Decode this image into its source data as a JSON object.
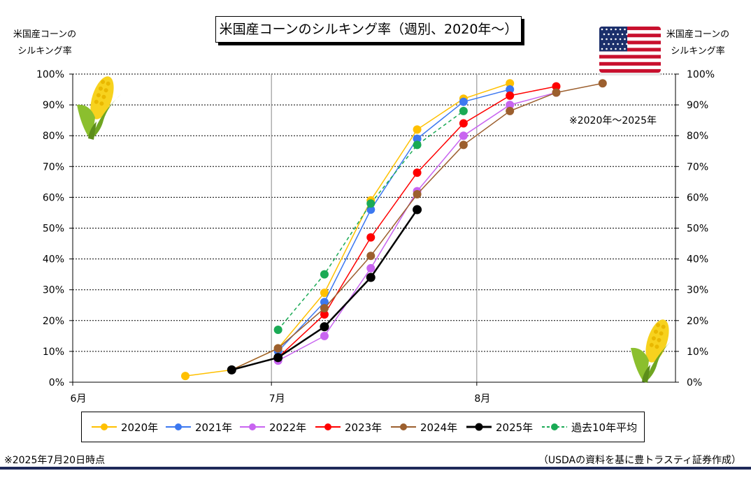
{
  "title": "米国産コーンのシルキング率（週別、2020年～）",
  "left_axis_title": [
    "米国産コーンの",
    "シルキング率"
  ],
  "right_axis_title": [
    "米国産コーンの",
    "シルキング率"
  ],
  "note_range": "※2020年～2025年",
  "footer_left": "※2025年7月20日時点",
  "footer_right": "（USDAの資料を基に豊トラスティ証券作成）",
  "colors": {
    "accent_bar": "#1f2a5a"
  },
  "icons": [
    "corn-icon",
    "us-flag-icon"
  ],
  "chart_data": {
    "type": "line",
    "title": "米国産コーンのシルキング率（週別、2020年～）",
    "x_unit": "days from Jun 1",
    "x_ticks": [
      {
        "label": "6月",
        "x": 0
      },
      {
        "label": "7月",
        "x": 30
      },
      {
        "label": "8月",
        "x": 61
      }
    ],
    "xlim": [
      0,
      91
    ],
    "ylim": [
      0,
      100
    ],
    "y_ticks": [
      0,
      10,
      20,
      30,
      40,
      50,
      60,
      70,
      80,
      90,
      100
    ],
    "y_tick_suffix": "%",
    "grid": true,
    "legend": "bottom",
    "series": [
      {
        "name": "2020年",
        "color": "#FFC000",
        "dashed": false,
        "width": 1.5,
        "points": [
          [
            17,
            2
          ],
          [
            24,
            4
          ],
          [
            31,
            11
          ],
          [
            38,
            29
          ],
          [
            45,
            59
          ],
          [
            52,
            82
          ],
          [
            59,
            92
          ],
          [
            66,
            97
          ]
        ]
      },
      {
        "name": "2021年",
        "color": "#3C78F0",
        "dashed": false,
        "width": 1.5,
        "points": [
          [
            31,
            10
          ],
          [
            38,
            26
          ],
          [
            45,
            56
          ],
          [
            52,
            79
          ],
          [
            59,
            91
          ],
          [
            66,
            95
          ]
        ]
      },
      {
        "name": "2022年",
        "color": "#C864F0",
        "dashed": false,
        "width": 1.5,
        "points": [
          [
            31,
            7
          ],
          [
            38,
            15
          ],
          [
            45,
            37
          ],
          [
            52,
            62
          ],
          [
            59,
            80
          ],
          [
            66,
            90
          ],
          [
            73,
            94
          ]
        ]
      },
      {
        "name": "2023年",
        "color": "#FF0000",
        "dashed": false,
        "width": 1.5,
        "points": [
          [
            31,
            8
          ],
          [
            38,
            22
          ],
          [
            45,
            47
          ],
          [
            52,
            68
          ],
          [
            59,
            84
          ],
          [
            66,
            93
          ],
          [
            73,
            96
          ]
        ]
      },
      {
        "name": "2024年",
        "color": "#9C5F2E",
        "dashed": false,
        "width": 1.5,
        "points": [
          [
            24,
            4
          ],
          [
            31,
            11
          ],
          [
            38,
            24
          ],
          [
            45,
            41
          ],
          [
            52,
            61
          ],
          [
            59,
            77
          ],
          [
            66,
            88
          ],
          [
            73,
            94
          ],
          [
            80,
            97
          ]
        ]
      },
      {
        "name": "2025年",
        "color": "#000000",
        "dashed": false,
        "width": 2.5,
        "points": [
          [
            24,
            4
          ],
          [
            31,
            8
          ],
          [
            38,
            18
          ],
          [
            45,
            34
          ],
          [
            52,
            56
          ]
        ]
      },
      {
        "name": "過去10年平均",
        "color": "#1AAA55",
        "dashed": true,
        "width": 1.5,
        "points": [
          [
            31,
            17
          ],
          [
            38,
            35
          ],
          [
            45,
            58
          ],
          [
            52,
            77
          ],
          [
            59,
            88
          ]
        ]
      }
    ]
  }
}
